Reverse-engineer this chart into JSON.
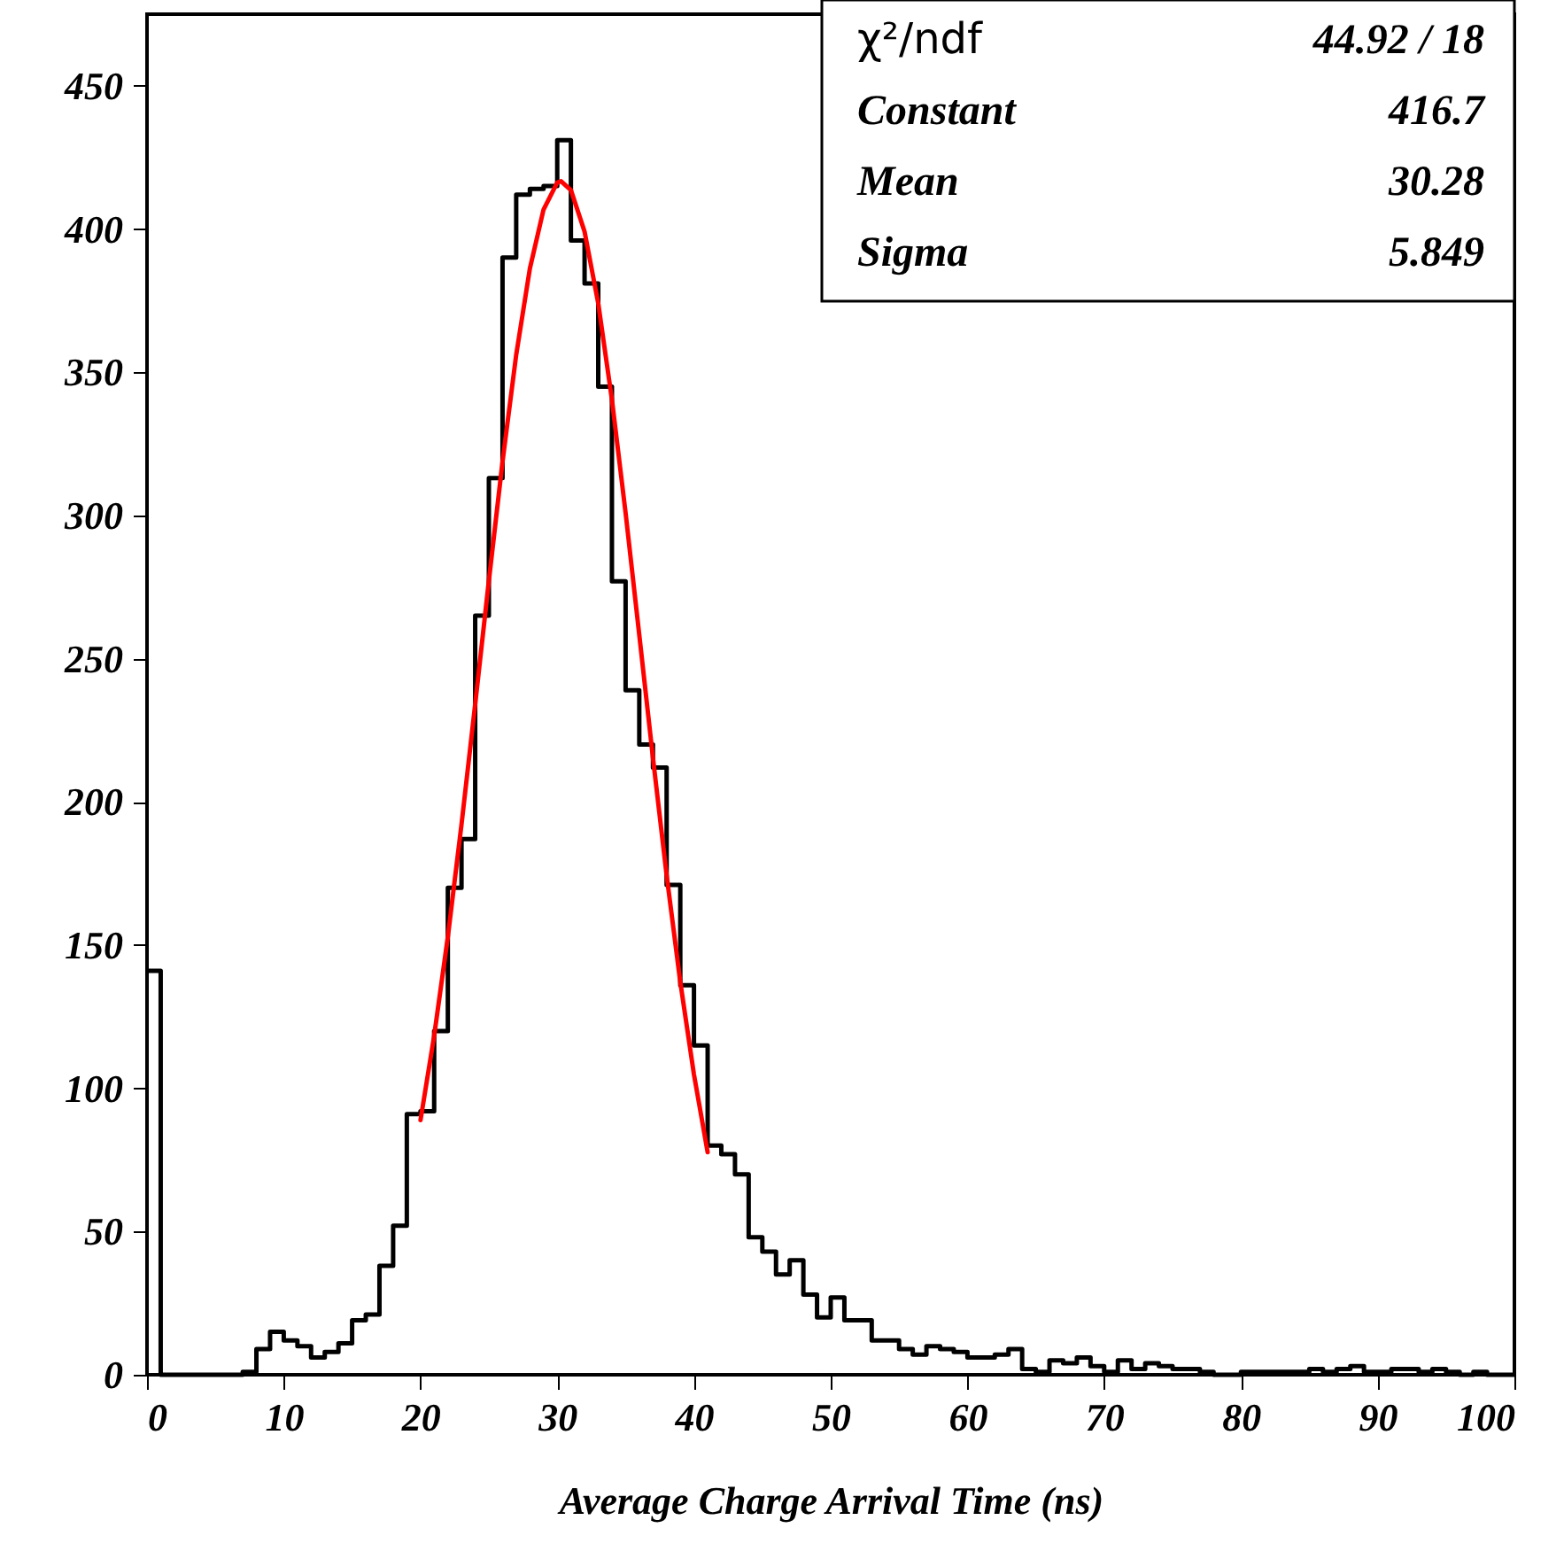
{
  "chart_data": {
    "type": "histogram",
    "xlabel": "Average Charge Arrival Time (ns)",
    "xlim": [
      0,
      100
    ],
    "xticks": [
      0,
      10,
      20,
      30,
      40,
      50,
      60,
      70,
      80,
      90,
      100
    ],
    "ylim": [
      0,
      475
    ],
    "yticks": [
      0,
      50,
      100,
      150,
      200,
      250,
      300,
      350,
      400,
      450
    ],
    "grid": false,
    "series": [
      {
        "color": "#000000",
        "bins": [
          0,
          1,
          2,
          3,
          4,
          5,
          6,
          7,
          8,
          9,
          10,
          11,
          12,
          13,
          14,
          15,
          16,
          17,
          18,
          19,
          20,
          21,
          22,
          23,
          24,
          25,
          26,
          27,
          28,
          29,
          30,
          31,
          32,
          33,
          34,
          35,
          36,
          37,
          38,
          39,
          40,
          41,
          42,
          43,
          44,
          45,
          46,
          47,
          48,
          49,
          50,
          51,
          52,
          53,
          54,
          55,
          56,
          57,
          58,
          59,
          60,
          61,
          62,
          63,
          64,
          65,
          66,
          67,
          68,
          69,
          70,
          71,
          72,
          73,
          74,
          75,
          76,
          77,
          78,
          79,
          80,
          81,
          82,
          83,
          84,
          85,
          86,
          87,
          88,
          89,
          90,
          91,
          92,
          93,
          94,
          95,
          96,
          97,
          98,
          99,
          100
        ],
        "values": [
          141,
          0,
          0,
          0,
          0,
          0,
          0,
          1,
          9,
          15,
          12,
          10,
          6,
          8,
          11,
          19,
          21,
          38,
          52,
          91,
          92,
          120,
          170,
          187,
          265,
          313,
          390,
          412,
          414,
          415,
          431,
          396,
          381,
          345,
          277,
          239,
          220,
          212,
          171,
          136,
          115,
          80,
          77,
          70,
          48,
          43,
          35,
          40,
          28,
          20,
          27,
          19,
          19,
          12,
          12,
          9,
          7,
          10,
          9,
          8,
          6,
          6,
          7,
          9,
          2,
          1,
          5,
          4,
          6,
          3,
          1,
          5,
          2,
          4,
          3,
          2,
          2,
          1,
          0,
          0,
          1,
          1,
          1,
          1,
          1,
          2,
          1,
          2,
          3,
          1,
          1,
          2,
          2,
          1,
          2,
          1,
          0,
          1,
          0,
          0
        ]
      },
      {
        "type": "line",
        "color": "#ff0000",
        "x": [
          20,
          21,
          22,
          23,
          24,
          25,
          26,
          27,
          28,
          29,
          30,
          30.28,
          31,
          32,
          33,
          34,
          35,
          36,
          37,
          38,
          39,
          40,
          41
        ],
        "values": [
          88.9,
          118.3,
          152.9,
          192.1,
          234.1,
          277.2,
          318.8,
          356.1,
          386.2,
          406.8,
          416.2,
          416.7,
          413.6,
          399.1,
          374.0,
          340.4,
          300.9,
          258.3,
          215.4,
          174.4,
          137.1,
          104.8,
          77.7
        ]
      }
    ],
    "annotations": [
      "χ²/ndf",
      "44.92   /   18",
      "Constant",
      "416.7",
      "Mean",
      "30.28",
      "Sigma",
      "5.849"
    ]
  }
}
